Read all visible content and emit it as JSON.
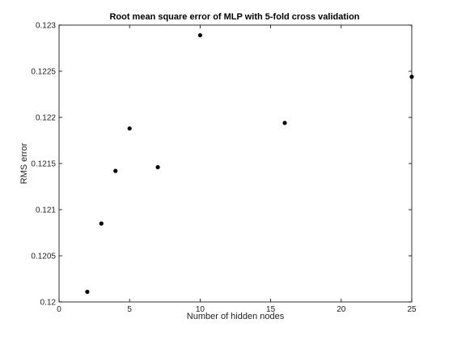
{
  "chart_data": {
    "type": "scatter",
    "title": "Root mean square error of MLP with 5-fold cross validation",
    "xlabel": "Number of hidden nodes",
    "ylabel": "RMS error",
    "xlim": [
      0,
      25
    ],
    "ylim": [
      0.12,
      0.123
    ],
    "xticks": [
      0,
      5,
      10,
      15,
      20,
      25
    ],
    "xtick_labels": [
      "0",
      "5",
      "10",
      "15",
      "20",
      "25"
    ],
    "yticks": [
      0.12,
      0.1205,
      0.121,
      0.1215,
      0.122,
      0.1225,
      0.123
    ],
    "ytick_labels": [
      "0.12",
      "0.1205",
      "0.121",
      "0.1215",
      "0.122",
      "0.1225",
      "0.123"
    ],
    "grid": false,
    "series": [
      {
        "name": "RMS error",
        "x": [
          2,
          3,
          4,
          5,
          7,
          10,
          16,
          25
        ],
        "y": [
          0.12011,
          0.12085,
          0.12142,
          0.12188,
          0.12146,
          0.12289,
          0.12194,
          0.12244
        ]
      }
    ]
  }
}
